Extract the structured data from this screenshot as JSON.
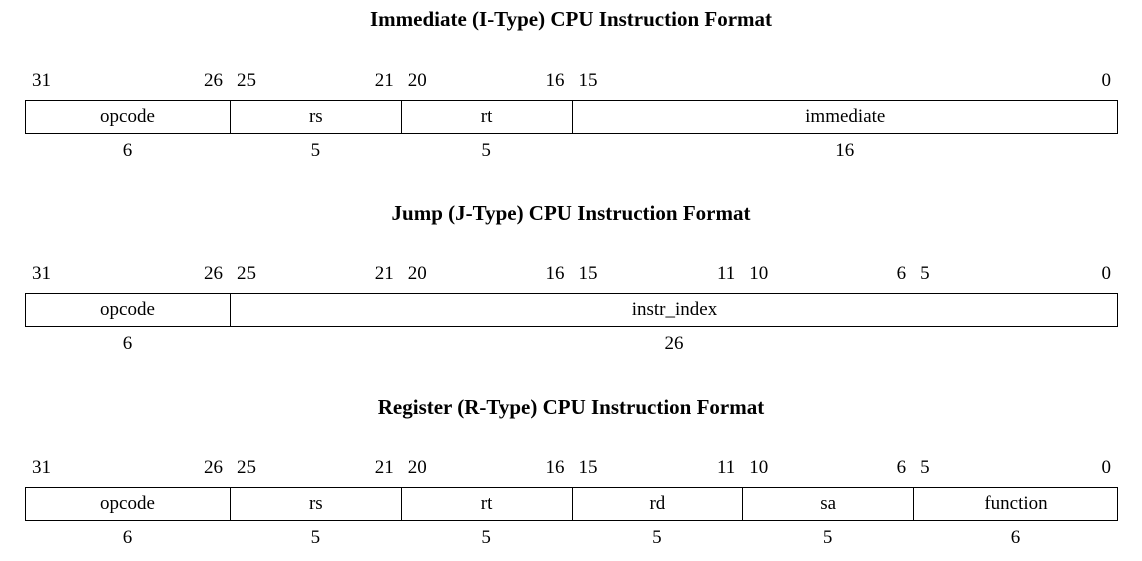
{
  "formats": [
    {
      "title": "Immediate (I-Type) CPU Instruction Format",
      "fields": [
        {
          "name": "opcode",
          "high": "31",
          "low": "26",
          "width": "6"
        },
        {
          "name": "rs",
          "high": "25",
          "low": "21",
          "width": "5"
        },
        {
          "name": "rt",
          "high": "20",
          "low": "16",
          "width": "5"
        },
        {
          "name": "immediate",
          "high": "15",
          "low": "0",
          "width": "16"
        }
      ]
    },
    {
      "title": "Jump (J-Type) CPU Instruction Format",
      "fields": [
        {
          "name": "opcode",
          "high": "31",
          "low": "26",
          "width": "6"
        },
        {
          "name": "instr_index",
          "high": "25",
          "low": "0",
          "width": "26"
        }
      ],
      "boundary_labels": [
        "21",
        "20",
        "16",
        "15",
        "11",
        "10",
        "6",
        "5"
      ]
    },
    {
      "title": "Register (R-Type) CPU Instruction Format",
      "fields": [
        {
          "name": "opcode",
          "high": "31",
          "low": "26",
          "width": "6"
        },
        {
          "name": "rs",
          "high": "25",
          "low": "21",
          "width": "5"
        },
        {
          "name": "rt",
          "high": "20",
          "low": "16",
          "width": "5"
        },
        {
          "name": "rd",
          "high": "15",
          "low": "11",
          "width": "5"
        },
        {
          "name": "sa",
          "high": "10",
          "low": "6",
          "width": "5"
        },
        {
          "name": "function",
          "high": "5",
          "low": "0",
          "width": "6"
        }
      ]
    }
  ]
}
